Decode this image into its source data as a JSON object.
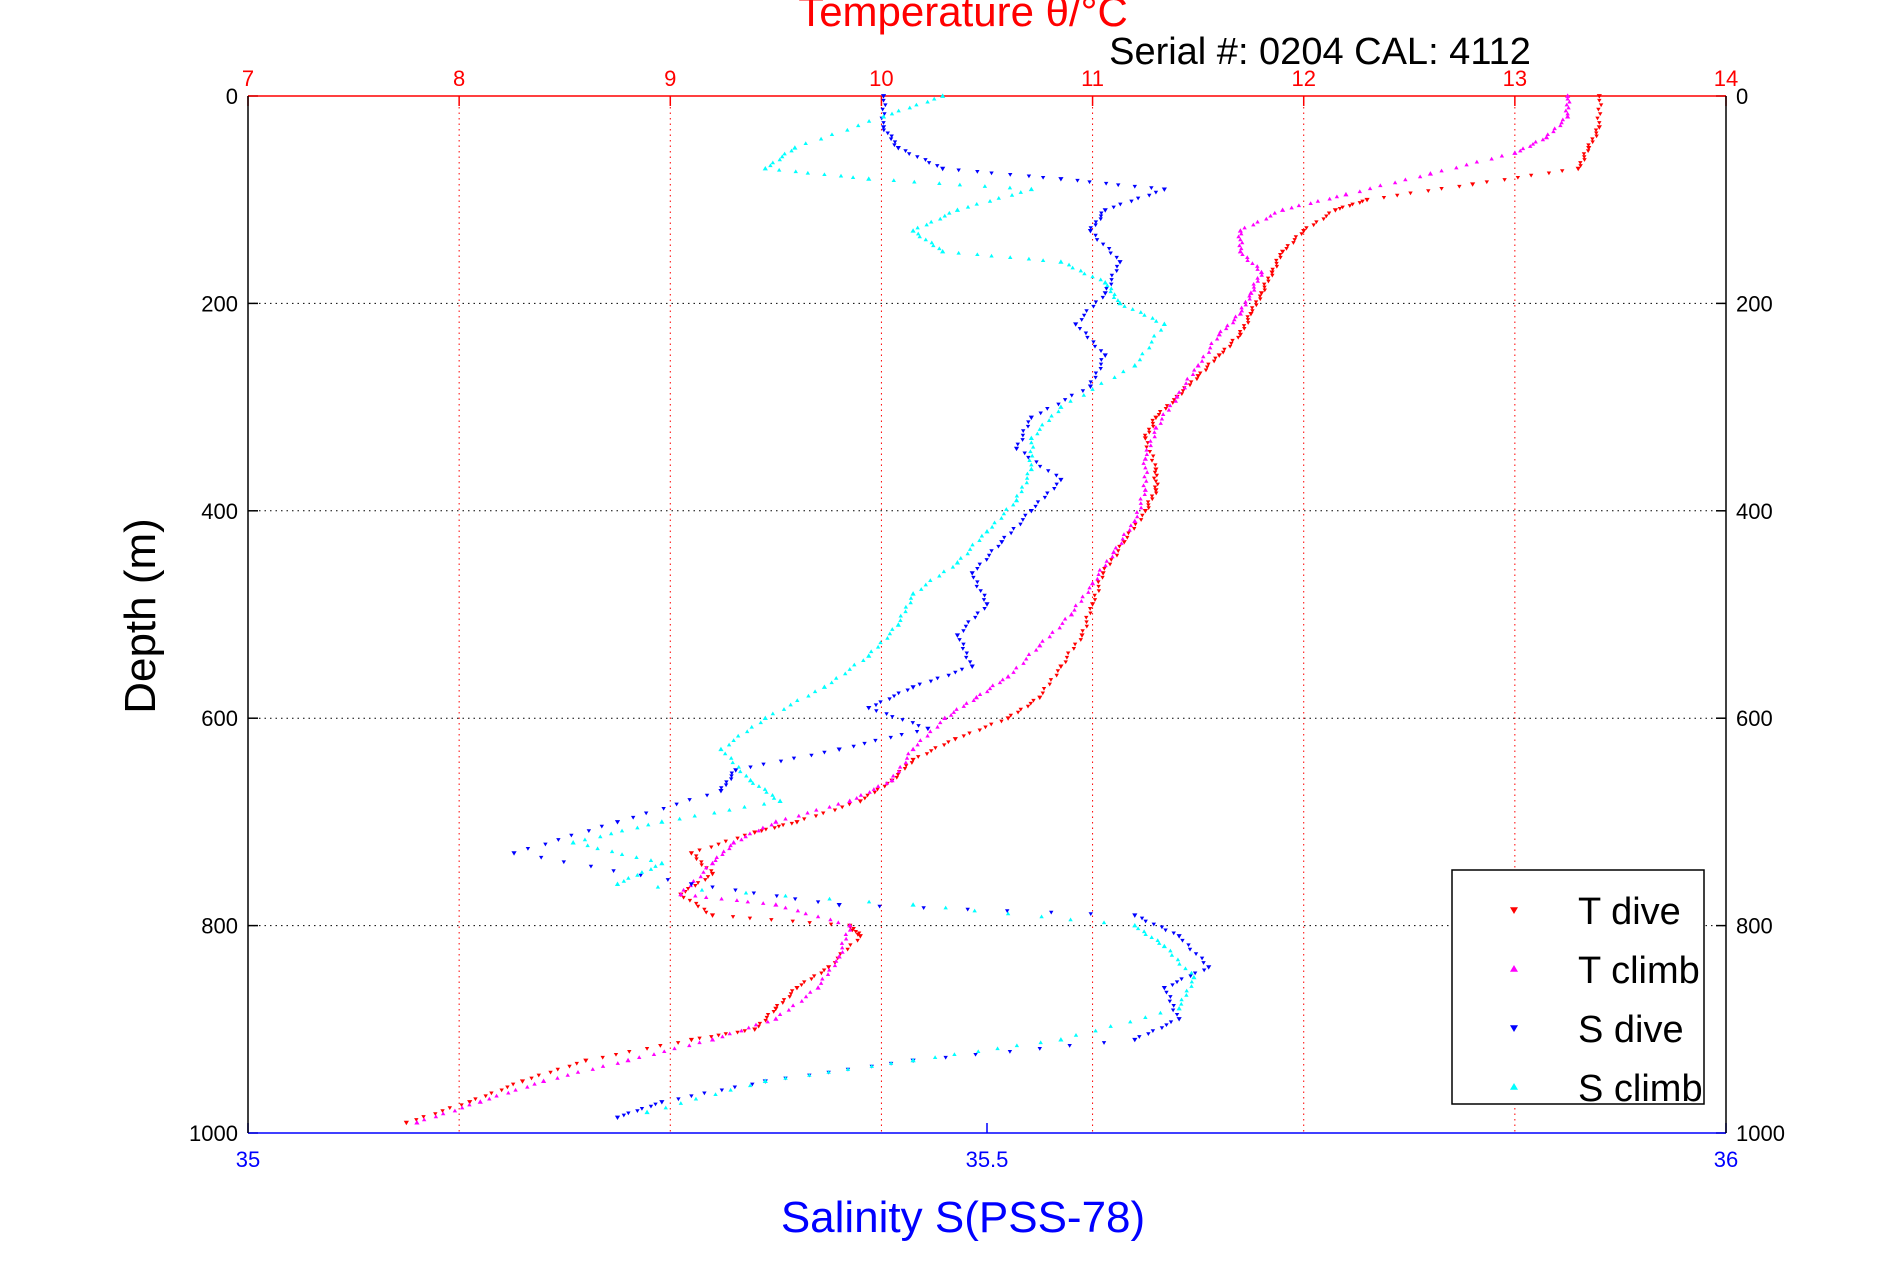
{
  "chart_data": {
    "type": "scatter",
    "title": "Temperature θ/°C",
    "subtitle": "Serial #: 0204  CAL: 4112",
    "ylabel": "Depth (m)",
    "xlabel": "Salinity S(PSS-78)",
    "grid": true,
    "legend_position": "bottom-right",
    "y_axis": {
      "range": [
        0,
        1000
      ],
      "reversed": true,
      "ticks": [
        0,
        200,
        400,
        600,
        800,
        1000
      ]
    },
    "x_top_axis": {
      "label": "Temperature θ/°C",
      "range": [
        7,
        14
      ],
      "ticks": [
        7,
        8,
        9,
        10,
        11,
        12,
        13,
        14
      ],
      "color": "#ff0000"
    },
    "x_bottom_axis": {
      "label": "Salinity S(PSS-78)",
      "range": [
        35,
        36
      ],
      "ticks": [
        "35",
        "35.5",
        "36"
      ],
      "color": "#0000ff"
    },
    "series": [
      {
        "name": "T dive",
        "axis": "top",
        "marker": "triangle-down",
        "color": "#ff0000",
        "points": [
          [
            13.4,
            0
          ],
          [
            13.4,
            30
          ],
          [
            13.35,
            50
          ],
          [
            13.3,
            70
          ],
          [
            12.8,
            85
          ],
          [
            12.3,
            100
          ],
          [
            12.15,
            110
          ],
          [
            12.0,
            130
          ],
          [
            11.9,
            150
          ],
          [
            11.85,
            170
          ],
          [
            11.8,
            190
          ],
          [
            11.75,
            210
          ],
          [
            11.7,
            230
          ],
          [
            11.6,
            250
          ],
          [
            11.5,
            270
          ],
          [
            11.4,
            290
          ],
          [
            11.3,
            310
          ],
          [
            11.25,
            330
          ],
          [
            11.3,
            360
          ],
          [
            11.3,
            380
          ],
          [
            11.25,
            400
          ],
          [
            11.15,
            430
          ],
          [
            11.05,
            460
          ],
          [
            11.0,
            490
          ],
          [
            10.95,
            520
          ],
          [
            10.85,
            550
          ],
          [
            10.75,
            580
          ],
          [
            10.6,
            600
          ],
          [
            10.35,
            620
          ],
          [
            10.15,
            640
          ],
          [
            10.05,
            660
          ],
          [
            9.9,
            680
          ],
          [
            9.6,
            700
          ],
          [
            9.4,
            710
          ],
          [
            9.1,
            730
          ],
          [
            9.2,
            750
          ],
          [
            9.05,
            770
          ],
          [
            9.2,
            790
          ],
          [
            9.85,
            800
          ],
          [
            9.9,
            810
          ],
          [
            9.75,
            840
          ],
          [
            9.6,
            860
          ],
          [
            9.5,
            880
          ],
          [
            9.4,
            900
          ],
          [
            9.1,
            910
          ],
          [
            8.6,
            930
          ],
          [
            8.3,
            950
          ],
          [
            8.05,
            970
          ],
          [
            7.75,
            990
          ]
        ]
      },
      {
        "name": "T climb",
        "axis": "top",
        "marker": "triangle-up",
        "color": "#ff00ff",
        "points": [
          [
            13.25,
            0
          ],
          [
            13.25,
            20
          ],
          [
            13.15,
            40
          ],
          [
            13.0,
            55
          ],
          [
            12.6,
            75
          ],
          [
            12.2,
            95
          ],
          [
            11.9,
            110
          ],
          [
            11.7,
            130
          ],
          [
            11.7,
            150
          ],
          [
            11.8,
            170
          ],
          [
            11.75,
            190
          ],
          [
            11.7,
            210
          ],
          [
            11.6,
            230
          ],
          [
            11.5,
            260
          ],
          [
            11.4,
            290
          ],
          [
            11.3,
            320
          ],
          [
            11.25,
            350
          ],
          [
            11.25,
            380
          ],
          [
            11.2,
            410
          ],
          [
            11.1,
            440
          ],
          [
            11.0,
            470
          ],
          [
            10.9,
            500
          ],
          [
            10.75,
            530
          ],
          [
            10.6,
            560
          ],
          [
            10.45,
            580
          ],
          [
            10.3,
            600
          ],
          [
            10.15,
            630
          ],
          [
            10.05,
            660
          ],
          [
            9.85,
            680
          ],
          [
            9.5,
            700
          ],
          [
            9.3,
            720
          ],
          [
            9.2,
            740
          ],
          [
            9.05,
            770
          ],
          [
            9.5,
            780
          ],
          [
            9.85,
            800
          ],
          [
            9.8,
            830
          ],
          [
            9.7,
            860
          ],
          [
            9.5,
            890
          ],
          [
            9.2,
            910
          ],
          [
            8.8,
            930
          ],
          [
            8.4,
            950
          ],
          [
            8.1,
            970
          ],
          [
            7.8,
            990
          ]
        ]
      },
      {
        "name": "S dive",
        "axis": "bottom",
        "marker": "triangle-down",
        "color": "#0000ff",
        "points": [
          [
            35.43,
            0
          ],
          [
            35.43,
            30
          ],
          [
            35.44,
            50
          ],
          [
            35.47,
            70
          ],
          [
            35.55,
            80
          ],
          [
            35.62,
            90
          ],
          [
            35.58,
            110
          ],
          [
            35.57,
            130
          ],
          [
            35.59,
            160
          ],
          [
            35.58,
            190
          ],
          [
            35.56,
            220
          ],
          [
            35.58,
            250
          ],
          [
            35.57,
            280
          ],
          [
            35.53,
            310
          ],
          [
            35.52,
            340
          ],
          [
            35.55,
            370
          ],
          [
            35.53,
            400
          ],
          [
            35.51,
            430
          ],
          [
            35.49,
            460
          ],
          [
            35.5,
            490
          ],
          [
            35.48,
            520
          ],
          [
            35.49,
            550
          ],
          [
            35.45,
            570
          ],
          [
            35.42,
            590
          ],
          [
            35.46,
            610
          ],
          [
            35.4,
            630
          ],
          [
            35.33,
            650
          ],
          [
            35.32,
            670
          ],
          [
            35.25,
            700
          ],
          [
            35.18,
            730
          ],
          [
            35.3,
            760
          ],
          [
            35.4,
            780
          ],
          [
            35.6,
            790
          ],
          [
            35.63,
            810
          ],
          [
            35.65,
            840
          ],
          [
            35.62,
            860
          ],
          [
            35.63,
            890
          ],
          [
            35.6,
            910
          ],
          [
            35.45,
            930
          ],
          [
            35.35,
            950
          ],
          [
            35.28,
            970
          ],
          [
            35.25,
            985
          ]
        ]
      },
      {
        "name": "S climb",
        "axis": "bottom",
        "marker": "triangle-up",
        "color": "#00ffff",
        "points": [
          [
            35.47,
            0
          ],
          [
            35.43,
            20
          ],
          [
            35.37,
            50
          ],
          [
            35.35,
            70
          ],
          [
            35.42,
            80
          ],
          [
            35.53,
            90
          ],
          [
            35.48,
            110
          ],
          [
            35.45,
            130
          ],
          [
            35.47,
            150
          ],
          [
            35.55,
            160
          ],
          [
            35.58,
            180
          ],
          [
            35.59,
            200
          ],
          [
            35.62,
            220
          ],
          [
            35.6,
            260
          ],
          [
            35.55,
            300
          ],
          [
            35.53,
            330
          ],
          [
            35.53,
            360
          ],
          [
            35.52,
            390
          ],
          [
            35.5,
            420
          ],
          [
            35.48,
            450
          ],
          [
            35.45,
            480
          ],
          [
            35.44,
            510
          ],
          [
            35.42,
            540
          ],
          [
            35.39,
            570
          ],
          [
            35.35,
            600
          ],
          [
            35.32,
            630
          ],
          [
            35.34,
            660
          ],
          [
            35.36,
            680
          ],
          [
            35.28,
            700
          ],
          [
            35.22,
            720
          ],
          [
            35.28,
            740
          ],
          [
            35.25,
            760
          ],
          [
            35.45,
            780
          ],
          [
            35.6,
            800
          ],
          [
            35.62,
            820
          ],
          [
            35.64,
            850
          ],
          [
            35.63,
            880
          ],
          [
            35.55,
            910
          ],
          [
            35.45,
            930
          ],
          [
            35.35,
            950
          ],
          [
            35.27,
            980
          ]
        ]
      }
    ]
  }
}
